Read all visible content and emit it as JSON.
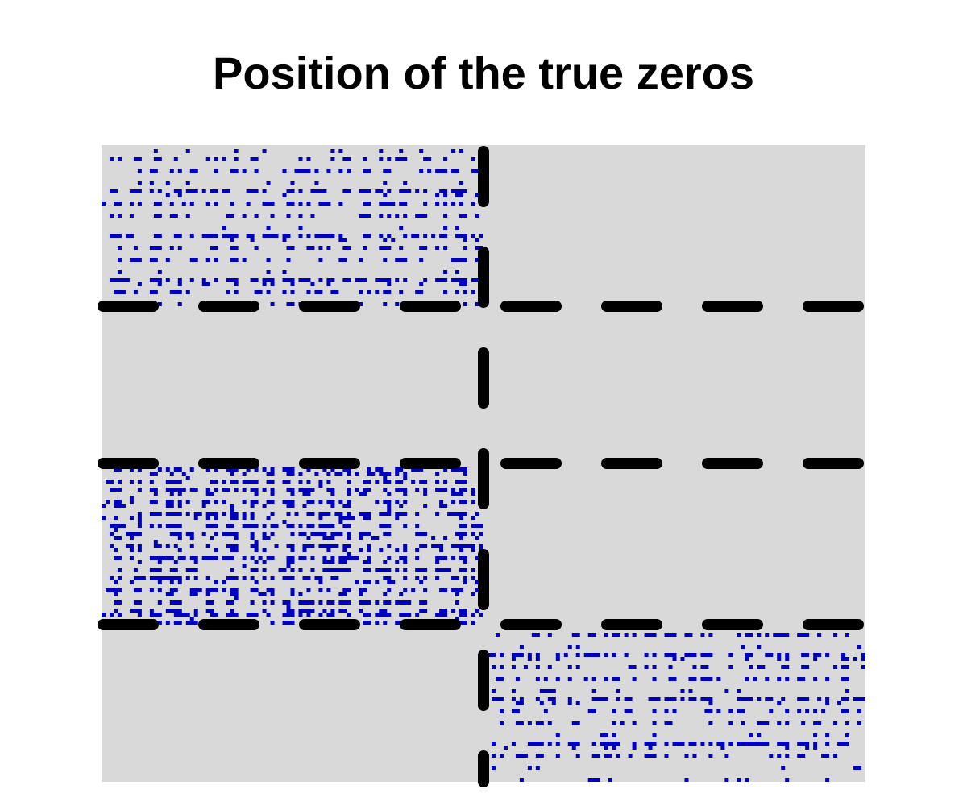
{
  "chart_data": {
    "type": "heatmap",
    "title": "Position of the true zeros",
    "xlabel": "",
    "ylabel": "",
    "axes_visible": false,
    "grid": false,
    "n_rows": 158,
    "n_cols": 190,
    "background_color": "#d9d9d9",
    "zero_color": "#0000bf",
    "divider_color": "#000000",
    "divider_style": "dashed",
    "row_block_boundaries": [
      39.5,
      78.5,
      118.5
    ],
    "col_block_boundaries": [
      94.5
    ],
    "zero_blocks": [
      {
        "rows": [
          0,
          39
        ],
        "cols": [
          0,
          94
        ]
      },
      {
        "rows": [
          79,
          118
        ],
        "cols": [
          0,
          94
        ]
      },
      {
        "rows": [
          119,
          157
        ],
        "cols": [
          95,
          189
        ]
      }
    ]
  }
}
